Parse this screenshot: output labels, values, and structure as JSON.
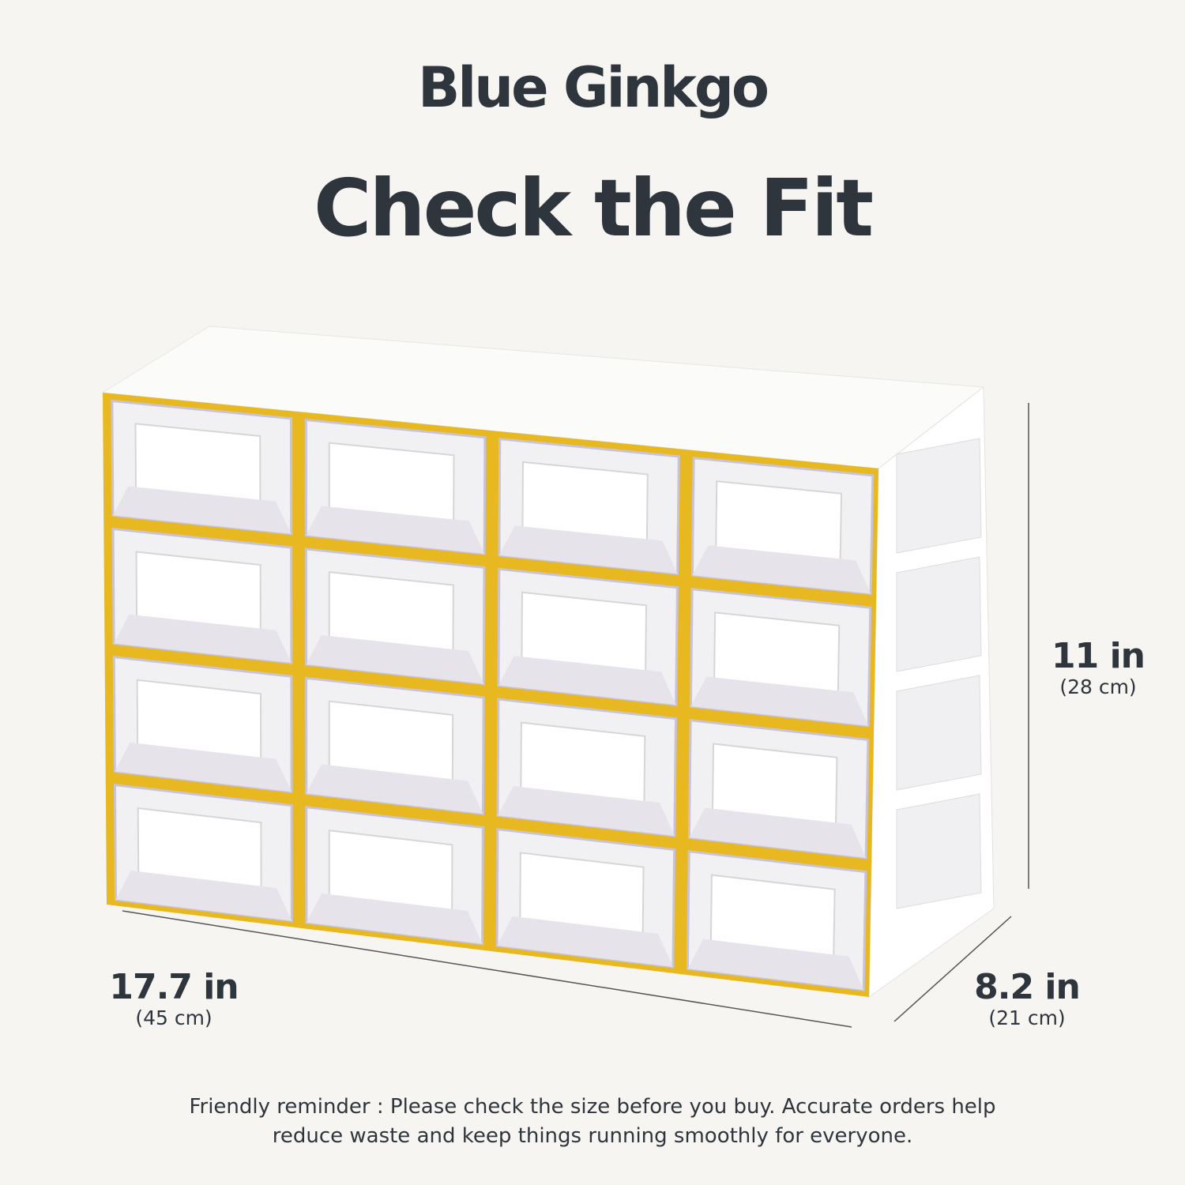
{
  "brand": "Blue Ginkgo",
  "title": "Check the Fit",
  "product": {
    "rows": 4,
    "columns": 4,
    "frame_color": "#e8b820",
    "body_color": "#ffffff"
  },
  "dimensions": {
    "height": {
      "value": "11 in",
      "metric": "(28 cm)"
    },
    "width": {
      "value": "17.7 in",
      "metric": "(45 cm)"
    },
    "depth": {
      "value": "8.2 in",
      "metric": "(21 cm)"
    }
  },
  "note": {
    "line1": "Friendly reminder :  Please check the size before you buy. Accurate orders help",
    "line2": "reduce waste and keep things running smoothly for everyone."
  }
}
